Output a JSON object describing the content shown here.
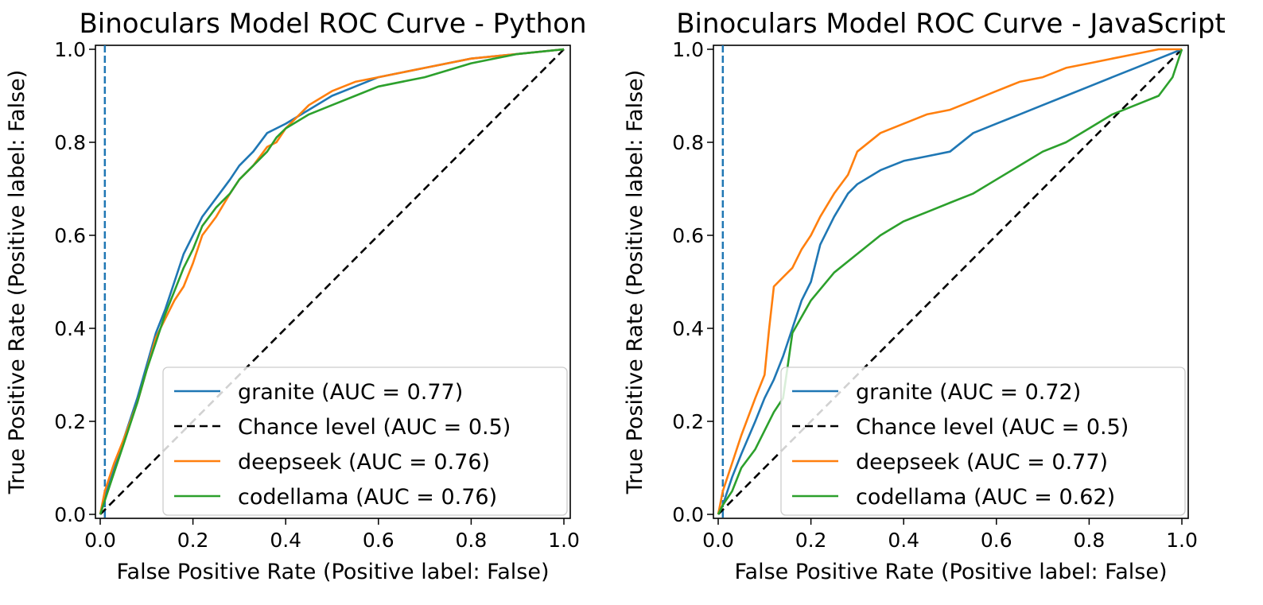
{
  "chart_data": [
    {
      "type": "line",
      "title": "Binoculars Model ROC Curve - Python",
      "xlabel": "False Positive Rate (Positive label: False)",
      "ylabel": "True Positive Rate (Positive label: False)",
      "xlim": [
        0.0,
        1.0
      ],
      "ylim": [
        0.0,
        1.0
      ],
      "xticks": [
        "0.0",
        "0.2",
        "0.4",
        "0.6",
        "0.8",
        "1.0"
      ],
      "yticks": [
        "0.0",
        "0.2",
        "0.4",
        "0.6",
        "0.8",
        "1.0"
      ],
      "grid": false,
      "legend_position": "lower-right",
      "threshold_line": {
        "x": 0.01,
        "style": "dashed",
        "color": "#1f77b4"
      },
      "series": [
        {
          "name": "granite (AUC = 0.77)",
          "color": "#1f77b4",
          "style": "solid",
          "x": [
            0,
            0.01,
            0.03,
            0.05,
            0.08,
            0.1,
            0.12,
            0.14,
            0.16,
            0.18,
            0.2,
            0.22,
            0.25,
            0.28,
            0.3,
            0.33,
            0.36,
            0.38,
            0.4,
            0.45,
            0.5,
            0.55,
            0.6,
            0.7,
            0.8,
            0.9,
            1.0
          ],
          "y": [
            0,
            0.04,
            0.1,
            0.16,
            0.25,
            0.32,
            0.39,
            0.44,
            0.5,
            0.56,
            0.6,
            0.64,
            0.68,
            0.72,
            0.75,
            0.78,
            0.82,
            0.83,
            0.84,
            0.87,
            0.9,
            0.92,
            0.94,
            0.96,
            0.98,
            0.99,
            1.0
          ]
        },
        {
          "name": "Chance level (AUC = 0.5)",
          "color": "#000000",
          "style": "dashed",
          "x": [
            0,
            1.0
          ],
          "y": [
            0,
            1.0
          ]
        },
        {
          "name": "deepseek (AUC = 0.76)",
          "color": "#ff7f0e",
          "style": "solid",
          "x": [
            0,
            0.01,
            0.03,
            0.05,
            0.08,
            0.1,
            0.12,
            0.14,
            0.16,
            0.18,
            0.2,
            0.22,
            0.25,
            0.28,
            0.3,
            0.33,
            0.36,
            0.38,
            0.4,
            0.45,
            0.5,
            0.55,
            0.6,
            0.7,
            0.8,
            0.9,
            1.0
          ],
          "y": [
            0,
            0.05,
            0.11,
            0.16,
            0.24,
            0.31,
            0.38,
            0.42,
            0.46,
            0.49,
            0.54,
            0.6,
            0.64,
            0.69,
            0.72,
            0.75,
            0.79,
            0.8,
            0.83,
            0.88,
            0.91,
            0.93,
            0.94,
            0.96,
            0.98,
            0.99,
            1.0
          ]
        },
        {
          "name": "codellama (AUC = 0.76)",
          "color": "#2ca02c",
          "style": "solid",
          "x": [
            0,
            0.01,
            0.03,
            0.05,
            0.08,
            0.1,
            0.12,
            0.14,
            0.16,
            0.18,
            0.2,
            0.22,
            0.25,
            0.28,
            0.3,
            0.33,
            0.36,
            0.38,
            0.4,
            0.45,
            0.5,
            0.55,
            0.6,
            0.7,
            0.8,
            0.9,
            1.0
          ],
          "y": [
            0,
            0.03,
            0.09,
            0.15,
            0.24,
            0.31,
            0.37,
            0.43,
            0.48,
            0.53,
            0.57,
            0.62,
            0.66,
            0.69,
            0.72,
            0.75,
            0.78,
            0.81,
            0.83,
            0.86,
            0.88,
            0.9,
            0.92,
            0.94,
            0.97,
            0.99,
            1.0
          ]
        }
      ]
    },
    {
      "type": "line",
      "title": "Binoculars Model ROC Curve - JavaScript",
      "xlabel": "False Positive Rate (Positive label: False)",
      "ylabel": "True Positive Rate (Positive label: False)",
      "xlim": [
        0.0,
        1.0
      ],
      "ylim": [
        0.0,
        1.0
      ],
      "xticks": [
        "0.0",
        "0.2",
        "0.4",
        "0.6",
        "0.8",
        "1.0"
      ],
      "yticks": [
        "0.0",
        "0.2",
        "0.4",
        "0.6",
        "0.8",
        "1.0"
      ],
      "grid": false,
      "legend_position": "lower-right",
      "threshold_line": {
        "x": 0.01,
        "style": "dashed",
        "color": "#1f77b4"
      },
      "series": [
        {
          "name": "granite (AUC = 0.72)",
          "color": "#1f77b4",
          "style": "solid",
          "x": [
            0,
            0.01,
            0.03,
            0.05,
            0.08,
            0.1,
            0.12,
            0.14,
            0.16,
            0.18,
            0.2,
            0.22,
            0.25,
            0.28,
            0.3,
            0.35,
            0.4,
            0.45,
            0.5,
            0.55,
            0.6,
            0.65,
            0.7,
            0.75,
            0.8,
            0.85,
            0.9,
            0.95,
            1.0
          ],
          "y": [
            0,
            0.02,
            0.08,
            0.13,
            0.2,
            0.25,
            0.29,
            0.34,
            0.4,
            0.46,
            0.5,
            0.58,
            0.64,
            0.69,
            0.71,
            0.74,
            0.76,
            0.77,
            0.78,
            0.82,
            0.84,
            0.86,
            0.88,
            0.9,
            0.92,
            0.94,
            0.96,
            0.98,
            1.0
          ]
        },
        {
          "name": "Chance level (AUC = 0.5)",
          "color": "#000000",
          "style": "dashed",
          "x": [
            0,
            1.0
          ],
          "y": [
            0,
            1.0
          ]
        },
        {
          "name": "deepseek (AUC = 0.77)",
          "color": "#ff7f0e",
          "style": "solid",
          "x": [
            0,
            0.01,
            0.03,
            0.05,
            0.08,
            0.1,
            0.11,
            0.12,
            0.14,
            0.16,
            0.18,
            0.2,
            0.22,
            0.25,
            0.28,
            0.3,
            0.35,
            0.4,
            0.45,
            0.5,
            0.55,
            0.6,
            0.65,
            0.7,
            0.75,
            0.8,
            0.85,
            0.9,
            0.95,
            1.0
          ],
          "y": [
            0,
            0.05,
            0.11,
            0.17,
            0.25,
            0.3,
            0.4,
            0.49,
            0.51,
            0.53,
            0.57,
            0.6,
            0.64,
            0.69,
            0.73,
            0.78,
            0.82,
            0.84,
            0.86,
            0.87,
            0.89,
            0.91,
            0.93,
            0.94,
            0.96,
            0.97,
            0.98,
            0.99,
            1.0,
            1.0
          ]
        },
        {
          "name": "codellama (AUC = 0.62)",
          "color": "#2ca02c",
          "style": "solid",
          "x": [
            0,
            0.01,
            0.03,
            0.05,
            0.08,
            0.1,
            0.12,
            0.14,
            0.15,
            0.16,
            0.2,
            0.25,
            0.3,
            0.35,
            0.4,
            0.45,
            0.5,
            0.55,
            0.6,
            0.65,
            0.7,
            0.75,
            0.8,
            0.85,
            0.9,
            0.95,
            0.98,
            1.0
          ],
          "y": [
            0,
            0.02,
            0.05,
            0.1,
            0.14,
            0.18,
            0.22,
            0.25,
            0.32,
            0.39,
            0.46,
            0.52,
            0.56,
            0.6,
            0.63,
            0.65,
            0.67,
            0.69,
            0.72,
            0.75,
            0.78,
            0.8,
            0.83,
            0.86,
            0.88,
            0.9,
            0.94,
            1.0
          ]
        }
      ]
    }
  ]
}
